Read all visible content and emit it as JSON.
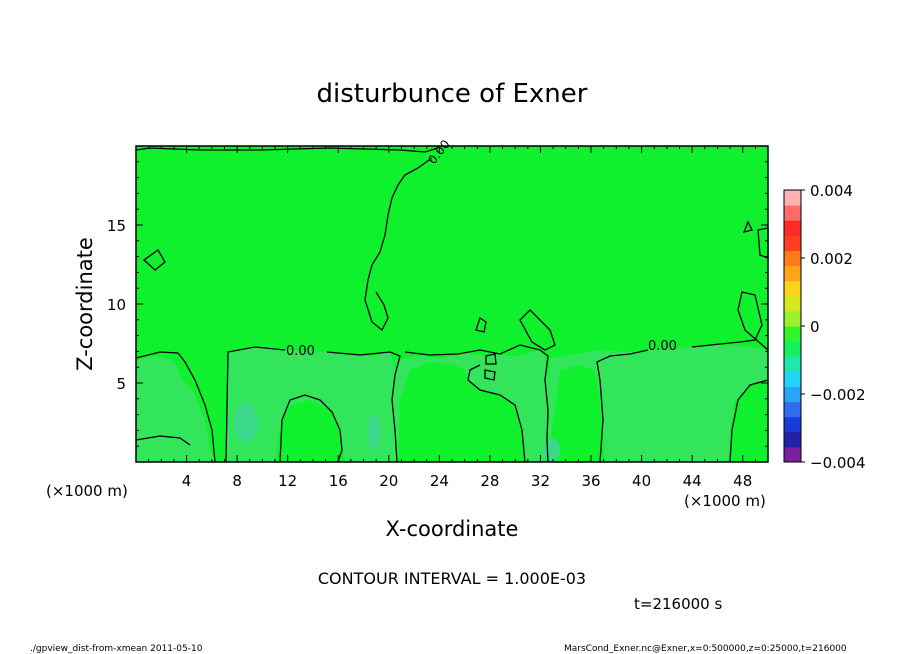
{
  "chart_data": {
    "type": "heatmap",
    "title": "disturbunce of Exner",
    "xlabel": "X-coordinate",
    "ylabel": "Z-coordinate",
    "x_unit_left": "(×1000 m)",
    "x_unit_right": "(×1000 m)",
    "xlim": [
      0,
      50
    ],
    "ylim": [
      0,
      20
    ],
    "x_ticks": [
      4,
      8,
      12,
      16,
      20,
      24,
      28,
      32,
      36,
      40,
      44,
      48
    ],
    "y_ticks": [
      5,
      10,
      15
    ],
    "contour_interval_text": "CONTOUR INTERVAL = 1.000E-03",
    "time_text": "t=216000 s",
    "contour_labels": [
      "0.00",
      "0.00",
      "0.00"
    ],
    "colorbar": {
      "range": [
        -0.004,
        0.004
      ],
      "tick_labels": [
        "0.004",
        "0.002",
        "0",
        "−0.002",
        "−0.004"
      ],
      "tick_values": [
        0.004,
        0.002,
        0,
        -0.002,
        -0.004
      ],
      "colors": [
        "#7a1fa0",
        "#2222a8",
        "#1a3ad8",
        "#2f6df0",
        "#2aa5f5",
        "#20d5f5",
        "#20e6b0",
        "#14f060",
        "#33f52b",
        "#9af02a",
        "#d8e81e",
        "#ffd21a",
        "#ffa51a",
        "#ff7a1a",
        "#ff4020",
        "#ff2a2a",
        "#ff6a6a",
        "#ffb0b0"
      ]
    },
    "field_colors": {
      "main": "#10f12e",
      "slightly_negative": "#33e55a"
    }
  },
  "footer": {
    "left": "./gpview_dist-from-xmean  2011-05-10",
    "right": "MarsCond_Exner.nc@Exner,x=0:500000,z=0:25000,t=216000"
  }
}
